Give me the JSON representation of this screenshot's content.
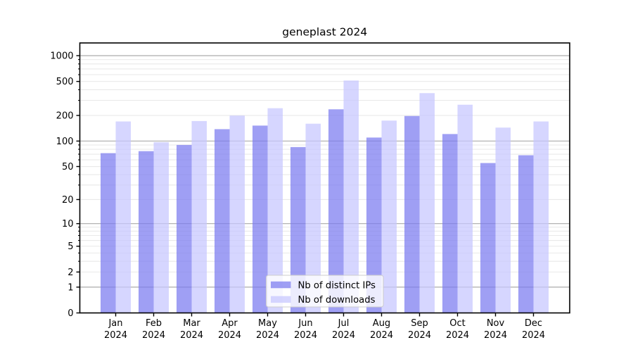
{
  "chart_data": {
    "type": "bar",
    "title": "geneplast 2024",
    "categories": [
      "Jan 2024",
      "Feb 2024",
      "Mar 2024",
      "Apr 2024",
      "May 2024",
      "Jun 2024",
      "Jul 2024",
      "Aug 2024",
      "Sep 2024",
      "Oct 2024",
      "Nov 2024",
      "Dec 2024"
    ],
    "series": [
      {
        "name": "Nb of distinct IPs",
        "color": "#7a7af0",
        "fill_alpha": 0.72,
        "values": [
          72,
          76,
          90,
          138,
          152,
          85,
          236,
          110,
          197,
          121,
          55,
          68
        ]
      },
      {
        "name": "Nb of downloads",
        "color": "#c6c6ff",
        "fill_alpha": 0.72,
        "values": [
          170,
          97,
          172,
          199,
          243,
          160,
          512,
          174,
          365,
          267,
          144,
          170
        ]
      }
    ],
    "xlabel": "",
    "ylabel": "",
    "yscale": "log10(value+1), 0 at baseline",
    "ytick_labels": [
      "1000",
      "500",
      "200",
      "100",
      "50",
      "20",
      "10",
      "5",
      "2",
      "1",
      "0"
    ],
    "ytick_values": [
      1000,
      500,
      200,
      100,
      50,
      20,
      10,
      5,
      2,
      1,
      0
    ],
    "ylim": [
      0,
      1400
    ],
    "grid": {
      "major_values": [
        1,
        10,
        100,
        1000
      ],
      "minor_values": [
        2,
        3,
        4,
        5,
        6,
        7,
        8,
        9,
        20,
        30,
        40,
        50,
        60,
        70,
        80,
        90,
        200,
        300,
        400,
        500,
        600,
        700,
        800,
        900
      ],
      "major_color": "#b3b3b3",
      "minor_color": "#e9e9e9"
    },
    "legend": {
      "position": "lower center",
      "entries": [
        "Nb of distinct IPs",
        "Nb of downloads"
      ]
    }
  },
  "colors": {
    "background": "#ffffff",
    "axis": "#000000",
    "text": "#000000",
    "legend_border": "#cccccc",
    "legend_background": "rgba(255,255,255,0.8)"
  }
}
